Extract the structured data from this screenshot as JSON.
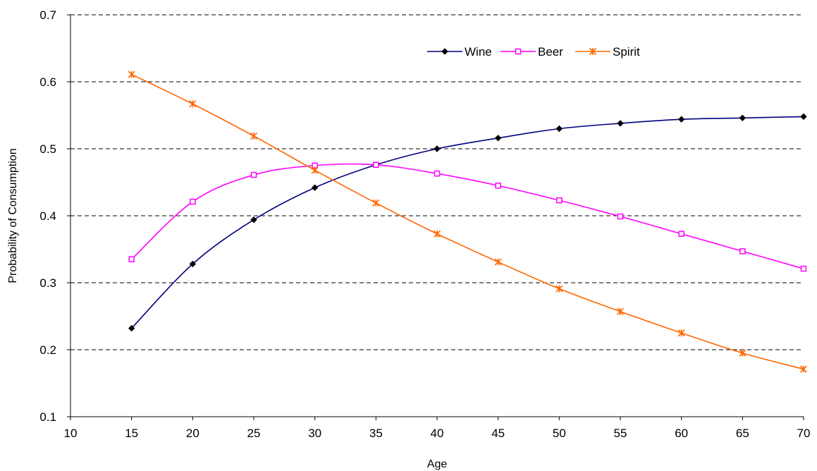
{
  "chart_data": {
    "type": "line",
    "title": "",
    "xlabel": "Age",
    "ylabel": "Probability of Consumption",
    "xlim": [
      10,
      70
    ],
    "ylim": [
      0.1,
      0.7
    ],
    "xticks": [
      10,
      15,
      20,
      25,
      30,
      35,
      40,
      45,
      50,
      55,
      60,
      65,
      70
    ],
    "yticks": [
      0.1,
      0.2,
      0.3,
      0.4,
      0.5,
      0.6,
      0.7
    ],
    "xtick_labels": [
      "10",
      "15",
      "20",
      "25",
      "30",
      "35",
      "40",
      "45",
      "50",
      "55",
      "60",
      "65",
      "70"
    ],
    "ytick_labels": [
      "0.1",
      "0.2",
      "0.3",
      "0.4",
      "0.5",
      "0.6",
      "0.7"
    ],
    "grid": "horizontal dashed",
    "legend_position": "top-right",
    "x": [
      15,
      20,
      25,
      30,
      35,
      40,
      45,
      50,
      55,
      60,
      65,
      70
    ],
    "series": [
      {
        "name": "Wine",
        "color": "#000080",
        "marker": "diamond",
        "values": [
          0.232,
          0.328,
          0.394,
          0.442,
          0.476,
          0.5,
          0.516,
          0.53,
          0.538,
          0.544,
          0.546,
          0.548
        ]
      },
      {
        "name": "Beer",
        "color": "#FF00FF",
        "marker": "square",
        "values": [
          0.335,
          0.421,
          0.461,
          0.475,
          0.476,
          0.463,
          0.445,
          0.423,
          0.399,
          0.373,
          0.347,
          0.321
        ]
      },
      {
        "name": "Spirit",
        "color": "#FF6600",
        "marker": "asterisk",
        "values": [
          0.611,
          0.567,
          0.519,
          0.468,
          0.419,
          0.373,
          0.331,
          0.291,
          0.257,
          0.225,
          0.195,
          0.171
        ]
      }
    ]
  }
}
